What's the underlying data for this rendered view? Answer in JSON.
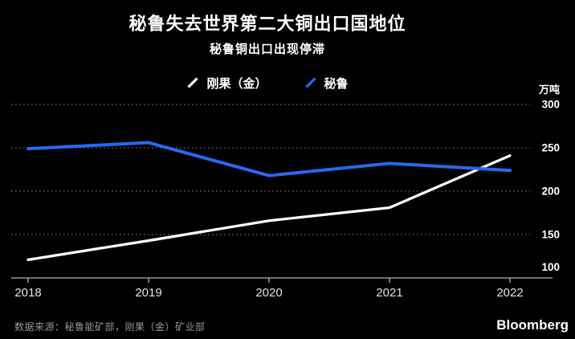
{
  "chart_data": {
    "type": "line",
    "title": "秘鲁失去世界第二大铜出口国地位",
    "subtitle": "秘鲁铜出口出现停滞",
    "x": [
      2018,
      2019,
      2020,
      2021,
      2022
    ],
    "series": [
      {
        "name": "刚果（金）",
        "color": "#ffffff",
        "values": [
          121,
          143,
          166,
          181,
          241
        ]
      },
      {
        "name": "秘鲁",
        "color": "#2469f0",
        "values": [
          249,
          256,
          218,
          232,
          224
        ]
      }
    ],
    "ylabel": "万吨",
    "ylim": [
      100,
      300
    ],
    "yticks": [
      100,
      150,
      200,
      250,
      300
    ],
    "grid": "horizontal-dotted",
    "legend_position": "top-center"
  },
  "footer": {
    "source": "数据来源：秘鲁能矿部，刚果（金）矿业部",
    "brand": "Bloomberg"
  },
  "colors": {
    "background": "#000000",
    "peru_blue": "#2469f0",
    "congo_white": "#ffffff",
    "gridline": "#575757",
    "axis": "#b3b3b3",
    "x_tick_label": "#e3e3e3",
    "y_tick_label": "#ffffff",
    "source_text": "#999999"
  }
}
